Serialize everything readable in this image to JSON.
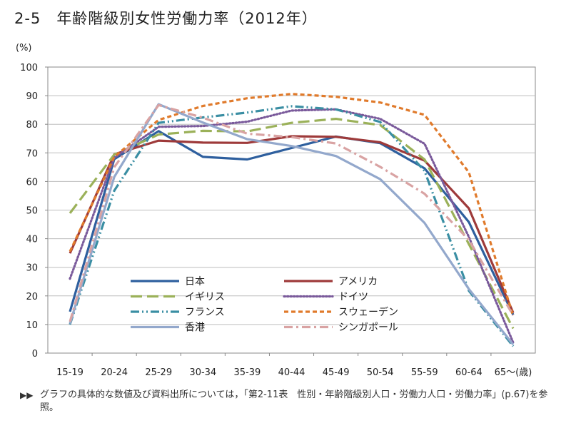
{
  "header": {
    "number": "2-5",
    "title": "年齢階級別女性労働力率（2012年）"
  },
  "footnote": "グラフの具体的な数値及び資料出所については，「第2-11表　性別・年齢階級別人口・労働力人口・労働力率」(p.67)を参照。",
  "chart_data": {
    "type": "line",
    "ylabel": "(%)",
    "xlabel": "",
    "ylim": [
      0,
      100
    ],
    "yticks": [
      "0",
      "10",
      "20",
      "30",
      "40",
      "50",
      "60",
      "70",
      "80",
      "90",
      "100"
    ],
    "categories": [
      "15-19",
      "20-24",
      "25-29",
      "30-34",
      "35-39",
      "40-44",
      "45-49",
      "50-54",
      "55-59",
      "60-64",
      "65〜(歳)"
    ],
    "grid": true,
    "legend_position": "bottom-center",
    "series": [
      {
        "name": "日本",
        "color": "#2e5f9e",
        "dash": "solid",
        "values": [
          14.5,
          67.8,
          77.6,
          68.6,
          67.7,
          71.7,
          75.7,
          73.4,
          64.6,
          45.8,
          13.4
        ]
      },
      {
        "name": "アメリカ",
        "color": "#9e3a3a",
        "dash": "solid",
        "values": [
          34.9,
          69.5,
          74.3,
          73.6,
          73.5,
          75.8,
          75.6,
          73.7,
          67.3,
          50.6,
          14.1
        ]
      },
      {
        "name": "イギリス",
        "color": "#9bb159",
        "dash": "longdash",
        "values": [
          48.9,
          69.4,
          76.4,
          77.7,
          77.5,
          80.5,
          81.9,
          79.7,
          67.7,
          38.1,
          8.6
        ]
      },
      {
        "name": "ドイツ",
        "color": "#7a5a9b",
        "dash": "dot",
        "values": [
          26.0,
          68.3,
          79.1,
          79.4,
          80.9,
          84.8,
          85.2,
          81.9,
          73.2,
          40.6,
          3.7
        ]
      },
      {
        "name": "フランス",
        "color": "#3a8ea3",
        "dash": "dashdotdot",
        "values": [
          10.0,
          56.8,
          80.5,
          82.4,
          84.1,
          86.3,
          85.2,
          80.8,
          63.7,
          21.8,
          2.4
        ]
      },
      {
        "name": "スウェーデン",
        "color": "#e07a2b",
        "dash": "shortdash",
        "values": [
          35.5,
          68.6,
          81.5,
          86.4,
          89.1,
          90.6,
          89.6,
          87.6,
          83.3,
          63.2,
          12.9
        ]
      },
      {
        "name": "香港",
        "color": "#93a8cc",
        "dash": "solid",
        "values": [
          10.3,
          61.6,
          87.0,
          80.6,
          74.8,
          72.4,
          68.9,
          60.8,
          45.5,
          22.4,
          3.0
        ]
      },
      {
        "name": "シンガポール",
        "color": "#d9a3a3",
        "dash": "dashdot",
        "values": [
          11.0,
          65.0,
          86.7,
          82.3,
          76.7,
          75.5,
          73.3,
          65.1,
          55.7,
          39.6,
          13.2
        ]
      }
    ]
  }
}
